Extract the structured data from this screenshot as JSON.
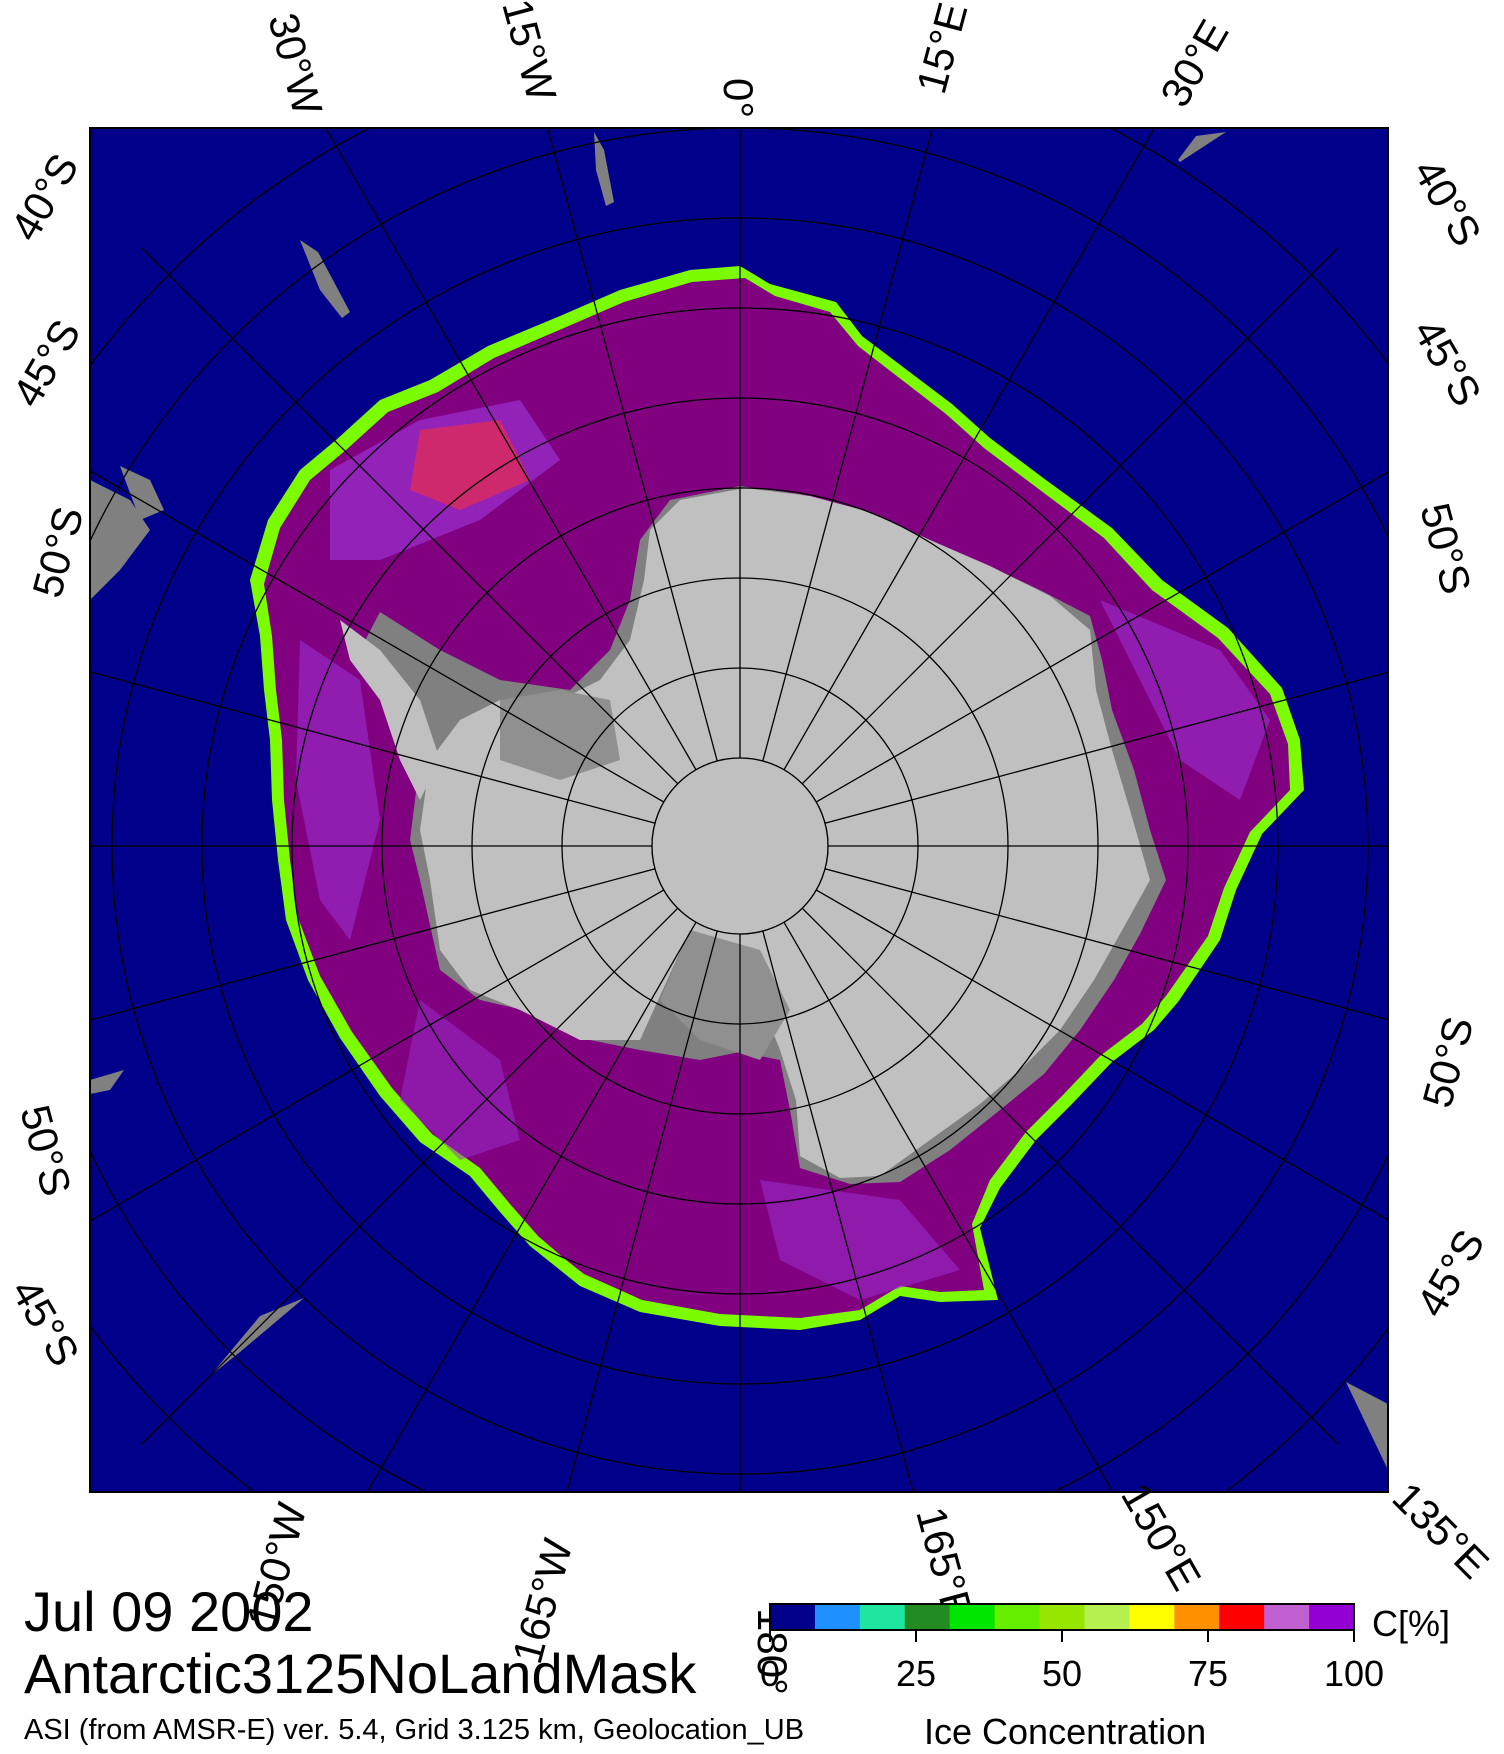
{
  "date": "Jul 09 2002",
  "product": "Antarctic3125NoLandMask",
  "info": "ASI (from AMSR-E) ver. 5.4,  Grid 3.125 km, Geolocation_UB",
  "colorbar": {
    "title": "Ice Concentration",
    "unit": "C[%]",
    "ticks": [
      "0",
      "25",
      "50",
      "75",
      "100"
    ],
    "colors": [
      "#00008b",
      "#1e90ff",
      "#1ee6a0",
      "#228b22",
      "#00e600",
      "#66ee00",
      "#96e600",
      "#b4f050",
      "#ffff00",
      "#ff9000",
      "#ff0000",
      "#c060d0",
      "#9400d3"
    ]
  },
  "colors": {
    "ocean": "#00008b",
    "land": "#808080",
    "ice_shelf": "#c0c0c0",
    "sea_ice_full": "#800080",
    "sea_ice_high": "#9b30d0",
    "sea_ice_mid": "#ff3030",
    "ice_edge": "#7cfc00"
  },
  "graticule": {
    "lon_labels_top": [
      "30°W",
      "15°W",
      "0°",
      "15°E",
      "30°E"
    ],
    "lon_labels_bottom": [
      "150°W",
      "165°W",
      "180°",
      "165°E",
      "150°E",
      "135°E"
    ],
    "lat_labels_left": [
      "40°S",
      "45°S",
      "50°S",
      "50°S",
      "45°S"
    ],
    "lat_labels_right": [
      "40°S",
      "45°S",
      "50°S",
      "50°S",
      "45°S"
    ]
  }
}
